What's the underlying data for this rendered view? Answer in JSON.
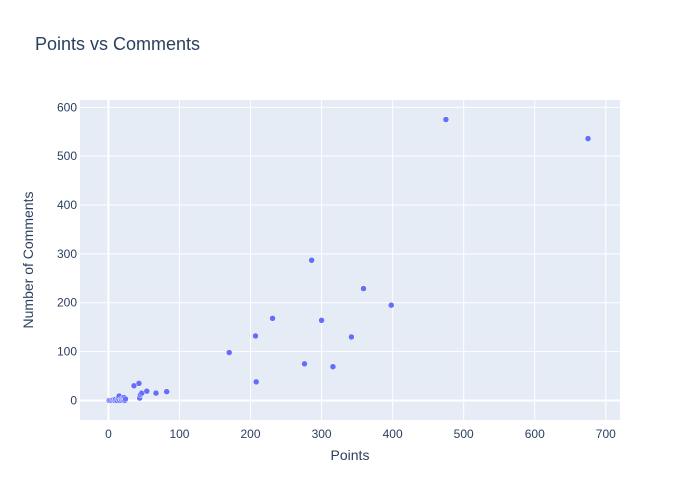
{
  "chart_data": {
    "type": "scatter",
    "title": "Points vs Comments",
    "xlabel": "Points",
    "ylabel": "Number of Comments",
    "xlim": [
      -40,
      720
    ],
    "ylim": [
      -40,
      615
    ],
    "xticks": [
      0,
      100,
      200,
      300,
      400,
      500,
      600,
      700
    ],
    "yticks": [
      0,
      100,
      200,
      300,
      400,
      500,
      600
    ],
    "grid": true,
    "colors": {
      "background": "#e5ecf6",
      "grid": "#ffffff",
      "marker": "#636efa",
      "text": "#2a3f5f"
    },
    "series": [
      {
        "points": [
          {
            "x": 1,
            "y": 0
          },
          {
            "x": 3,
            "y": 0
          },
          {
            "x": 5,
            "y": 0
          },
          {
            "x": 7,
            "y": 1
          },
          {
            "x": 9,
            "y": 0
          },
          {
            "x": 10,
            "y": 2
          },
          {
            "x": 12,
            "y": 0
          },
          {
            "x": 14,
            "y": 3
          },
          {
            "x": 15,
            "y": 9
          },
          {
            "x": 16,
            "y": 0
          },
          {
            "x": 18,
            "y": 2
          },
          {
            "x": 19,
            "y": 0
          },
          {
            "x": 21,
            "y": 1
          },
          {
            "x": 22,
            "y": 6
          },
          {
            "x": 23,
            "y": 0
          },
          {
            "x": 24,
            "y": 3
          },
          {
            "x": 36,
            "y": 30
          },
          {
            "x": 43,
            "y": 35
          },
          {
            "x": 44,
            "y": 5
          },
          {
            "x": 45,
            "y": 12
          },
          {
            "x": 47,
            "y": 15
          },
          {
            "x": 54,
            "y": 19
          },
          {
            "x": 67,
            "y": 15
          },
          {
            "x": 82,
            "y": 18
          },
          {
            "x": 170,
            "y": 98
          },
          {
            "x": 207,
            "y": 132
          },
          {
            "x": 208,
            "y": 38
          },
          {
            "x": 231,
            "y": 168
          },
          {
            "x": 276,
            "y": 75
          },
          {
            "x": 286,
            "y": 287
          },
          {
            "x": 300,
            "y": 164
          },
          {
            "x": 316,
            "y": 69
          },
          {
            "x": 342,
            "y": 130
          },
          {
            "x": 359,
            "y": 229
          },
          {
            "x": 398,
            "y": 195
          },
          {
            "x": 475,
            "y": 575
          },
          {
            "x": 675,
            "y": 536
          }
        ]
      }
    ]
  }
}
